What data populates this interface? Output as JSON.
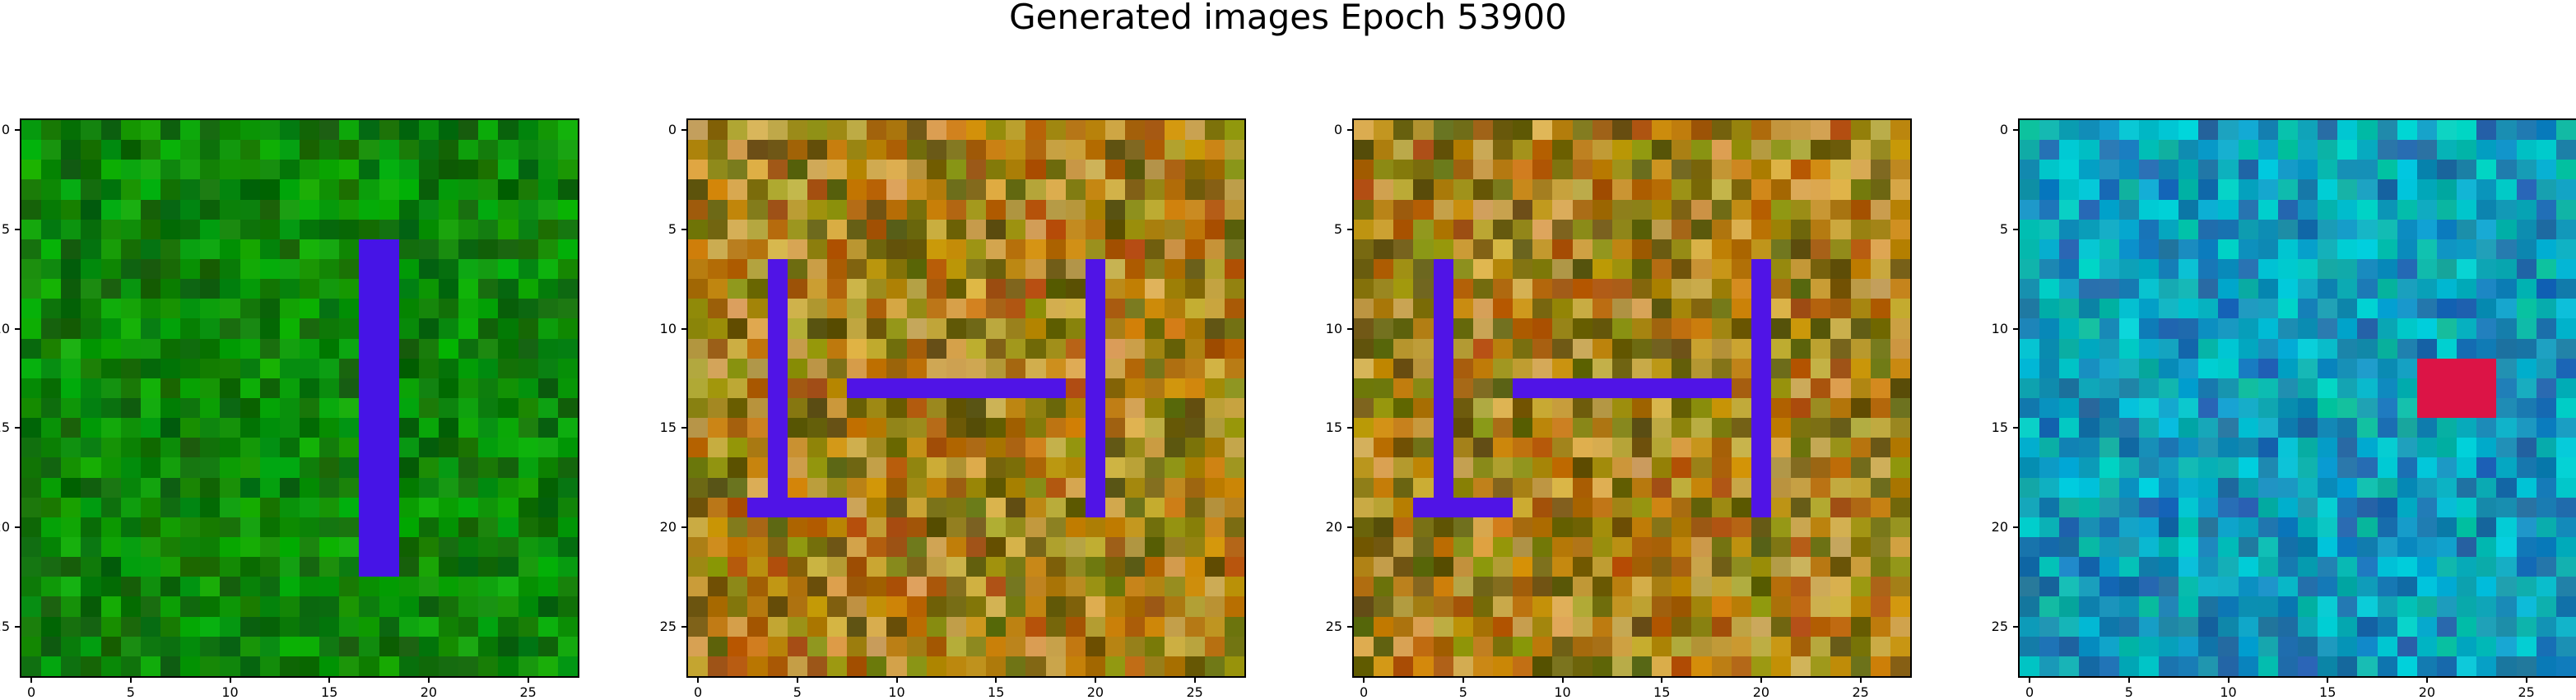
{
  "title": "Generated images Epoch 53900",
  "tick_labels": [
    "0",
    "5",
    "10",
    "15",
    "20",
    "25"
  ],
  "panels": [
    {
      "name": "generated-image-1",
      "palette": "green"
    },
    {
      "name": "generated-image-2",
      "palette": "olive"
    },
    {
      "name": "generated-image-3",
      "palette": "olive"
    },
    {
      "name": "generated-image-4",
      "palette": "cyan"
    }
  ]
}
